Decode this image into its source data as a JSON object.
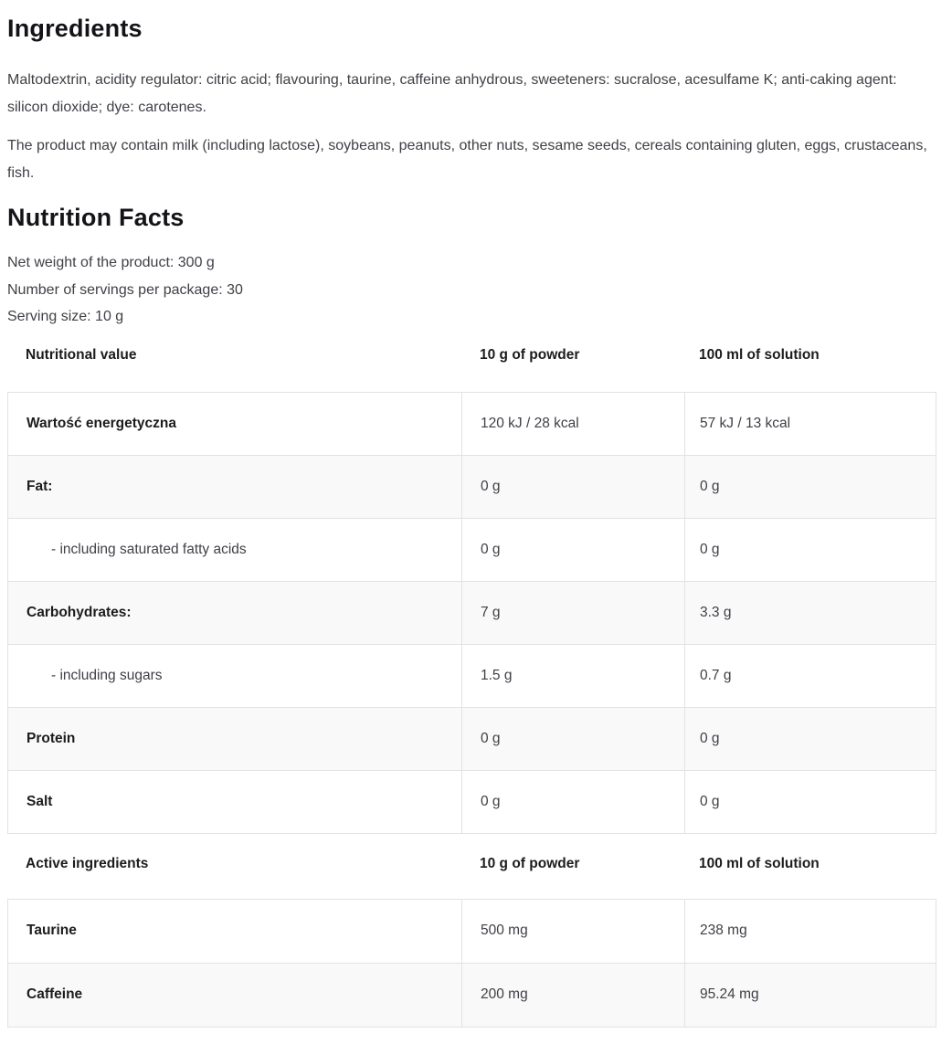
{
  "ingredients": {
    "title": "Ingredients",
    "paragraph1": "Maltodextrin, acidity regulator: citric acid; flavouring, taurine, caffeine anhydrous, sweeteners: sucralose, acesulfame K; anti-caking agent: silicon dioxide; dye: carotenes.",
    "paragraph2": "The product may contain milk (including lactose), soybeans, peanuts, other nuts, sesame seeds, cereals containing gluten, eggs, crustaceans, fish."
  },
  "nutrition": {
    "title": "Nutrition Facts",
    "net_weight": "Net weight of the product: 300 g",
    "servings": "Number of servings per package: 30",
    "serving_size": "Serving size: 10 g",
    "table1": {
      "headers": [
        "Nutritional value",
        "10 g of powder",
        "100 ml of solution"
      ],
      "rows": [
        {
          "label": "Wartość energetyczna",
          "powder": "120 kJ / 28 kcal",
          "solution": "57 kJ / 13 kcal"
        },
        {
          "label": "Fat:",
          "powder": "0 g",
          "solution": "0 g"
        },
        {
          "label": "- including saturated fatty acids",
          "powder": "0 g",
          "solution": "0 g"
        },
        {
          "label": "Carbohydrates:",
          "powder": "7 g",
          "solution": "3.3 g"
        },
        {
          "label": "- including sugars",
          "powder": "1.5 g",
          "solution": "0.7 g"
        },
        {
          "label": "Protein",
          "powder": "0 g",
          "solution": "0 g"
        },
        {
          "label": "Salt",
          "powder": "0 g",
          "solution": "0 g"
        }
      ]
    },
    "table2": {
      "headers": [
        "Active ingredients",
        "10 g of powder",
        "100 ml of solution"
      ],
      "rows": [
        {
          "label": "Taurine",
          "powder": "500 mg",
          "solution": "238 mg"
        },
        {
          "label": "Caffeine",
          "powder": "200 mg",
          "solution": "95.24 mg"
        }
      ]
    }
  },
  "colors": {
    "heading_text": "#141418",
    "body_text": "#3f3f46",
    "label_text": "#1c1c1f",
    "table_border": "#e2e2e2",
    "row_stripe": "#f9f9f9",
    "background": "#ffffff"
  }
}
